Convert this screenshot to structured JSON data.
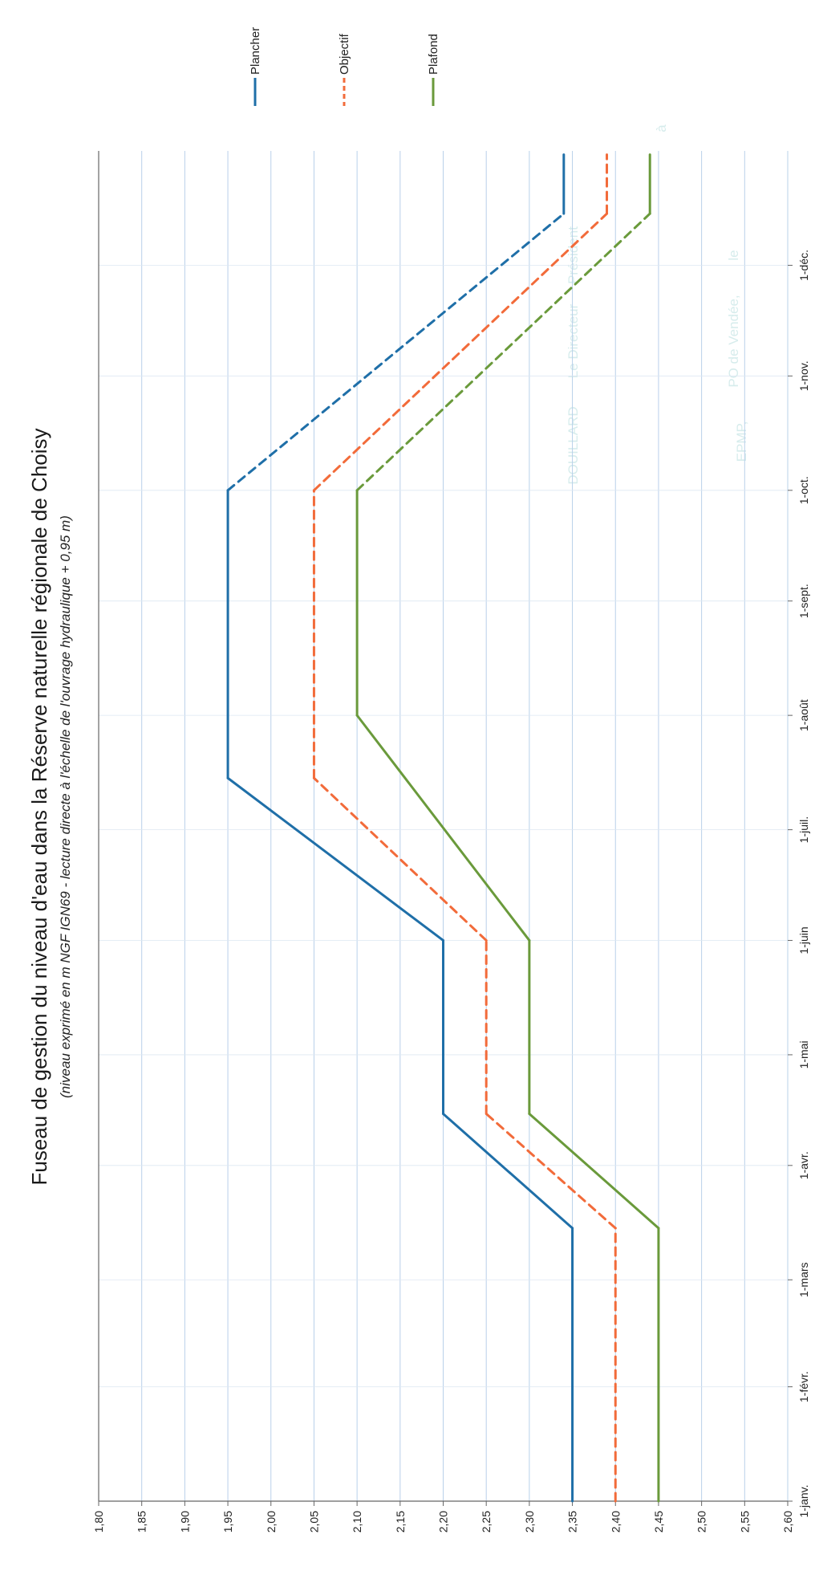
{
  "chart_data": {
    "type": "line",
    "title": "Fuseau de gestion du niveau d'eau dans la Réserve naturelle régionale de Choisy",
    "subtitle": "(niveau exprimé en m NGF IGN69 - lecture directe à l'échelle de l'ouvrage hydraulique + 0,95 m)",
    "xlabel": "",
    "ylabel": "",
    "x_ticks": [
      "1-janv.",
      "1-févr.",
      "1-mars",
      "1-avr.",
      "1-mai",
      "1-juin",
      "1-juil.",
      "1-août",
      "1-sept.",
      "1-oct.",
      "1-nov.",
      "1-déc."
    ],
    "y_ticks": [
      "1,80",
      "1,85",
      "1,90",
      "1,95",
      "2,00",
      "2,05",
      "2,10",
      "2,15",
      "2,20",
      "2,25",
      "2,30",
      "2,35",
      "2,40",
      "2,45",
      "2,50",
      "2,55",
      "2,60"
    ],
    "ylim": [
      1.8,
      2.6
    ],
    "grid": true,
    "legend_position": "top-right",
    "series": [
      {
        "name": "Plancher",
        "color": "#1f6fa8",
        "points": [
          {
            "x": "2024-01-01",
            "y": 2.35,
            "line": "solid"
          },
          {
            "x": "2024-03-15",
            "y": 2.35,
            "line": "solid"
          },
          {
            "x": "2024-04-15",
            "y": 2.2,
            "line": "solid"
          },
          {
            "x": "2024-06-01",
            "y": 2.2,
            "line": "solid"
          },
          {
            "x": "2024-07-15",
            "y": 1.95,
            "line": "solid"
          },
          {
            "x": "2024-10-01",
            "y": 1.95,
            "line": "dashed"
          },
          {
            "x": "2024-12-15",
            "y": 2.34,
            "line": "solid"
          },
          {
            "x": "2024-12-31",
            "y": 2.34,
            "line": "solid"
          }
        ]
      },
      {
        "name": "Objectif",
        "color": "#f26b3a",
        "points": [
          {
            "x": "2024-01-01",
            "y": 2.4,
            "line": "dashed"
          },
          {
            "x": "2024-03-15",
            "y": 2.4,
            "line": "dashed"
          },
          {
            "x": "2024-04-15",
            "y": 2.25,
            "line": "dashed"
          },
          {
            "x": "2024-06-01",
            "y": 2.25,
            "line": "dashed"
          },
          {
            "x": "2024-07-15",
            "y": 2.05,
            "line": "dashed"
          },
          {
            "x": "2024-10-01",
            "y": 2.05,
            "line": "dashed"
          },
          {
            "x": "2024-12-15",
            "y": 2.39,
            "line": "dashed"
          },
          {
            "x": "2024-12-31",
            "y": 2.39,
            "line": "dashed"
          }
        ]
      },
      {
        "name": "Plafond",
        "color": "#6a9a3b",
        "points": [
          {
            "x": "2024-01-01",
            "y": 2.45,
            "line": "solid"
          },
          {
            "x": "2024-03-15",
            "y": 2.45,
            "line": "solid"
          },
          {
            "x": "2024-04-15",
            "y": 2.3,
            "line": "solid"
          },
          {
            "x": "2024-06-01",
            "y": 2.3,
            "line": "solid"
          },
          {
            "x": "2024-08-01",
            "y": 2.1,
            "line": "solid"
          },
          {
            "x": "2024-10-01",
            "y": 2.1,
            "line": "dashed"
          },
          {
            "x": "2024-12-15",
            "y": 2.44,
            "line": "solid"
          },
          {
            "x": "2024-12-31",
            "y": 2.44,
            "line": "solid"
          }
        ]
      }
    ]
  },
  "background_text": [
    "à",
    "le",
    "PO de Vendée,",
    "EPMP,",
    "Président",
    "Le Directeur",
    "DOUILLARD"
  ]
}
